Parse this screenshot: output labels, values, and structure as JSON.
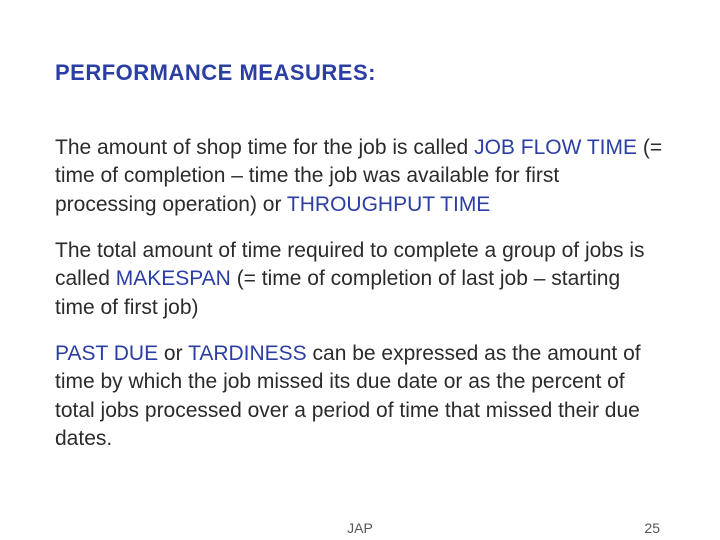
{
  "heading": "PERFORMANCE MEASURES:",
  "para1": {
    "pre": "The amount of shop time for the job is called ",
    "term1": "JOB FLOW TIME",
    "mid": " (= time of completion – time the job was available for first processing operation) or ",
    "term2": "THROUGHPUT TIME"
  },
  "para2": {
    "pre": "The total amount of time required to complete a group of jobs is called ",
    "term1": "MAKESPAN",
    "post": " (= time of completion of last job – starting time of first job)"
  },
  "para3": {
    "term1": "PAST DUE",
    "mid": " or ",
    "term2": "TARDINESS",
    "post": " can be expressed as the amount of time by which the job missed its due date or as the percent of total jobs processed over a period of time that missed their due dates."
  },
  "footer": {
    "center": "JAP",
    "page": "25"
  },
  "colors": {
    "term": "#2b3ea3",
    "body": "#2b2b2b",
    "background": "#ffffff"
  }
}
